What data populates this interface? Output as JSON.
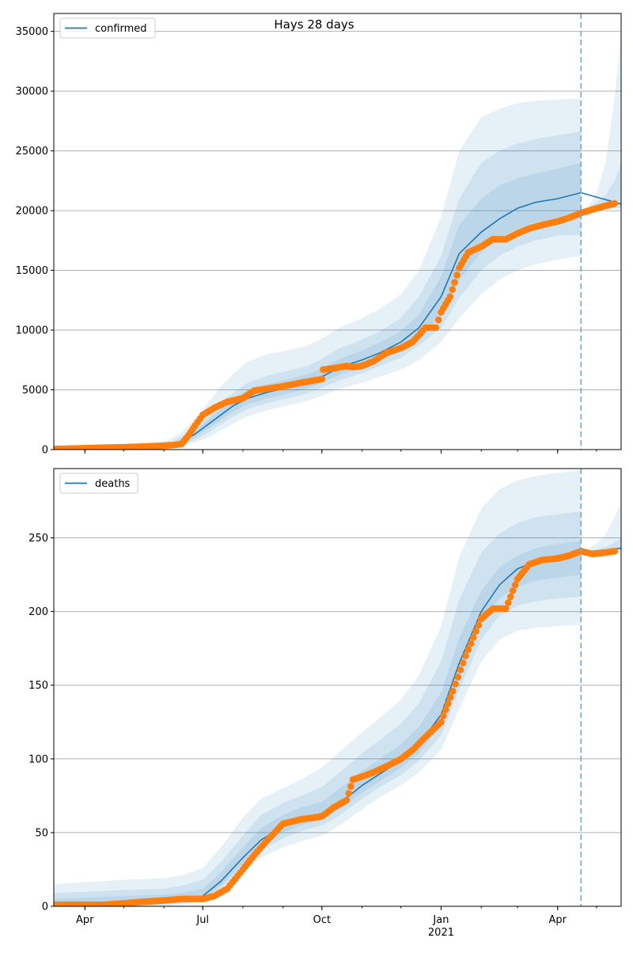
{
  "figure": {
    "title": "Hays 28 days"
  },
  "colors": {
    "model_line": "#1f77b4",
    "observed_points": "#ff7f0e",
    "band": "#1f77b4",
    "gridline": "#b0b0b0",
    "vline": "#7aa7cc"
  },
  "chart_data": [
    {
      "type": "line",
      "name": "confirmed-panel",
      "title": "Hays 28 days",
      "legend": "confirmed",
      "legend_position": "top-left",
      "grid": "horizontal",
      "x_type": "date",
      "xlim": [
        "2020-03-08",
        "2021-05-20"
      ],
      "ylim": [
        0,
        36500
      ],
      "yticks": [
        0,
        5000,
        10000,
        15000,
        20000,
        25000,
        30000,
        35000
      ],
      "xticks": [
        {
          "date": "2020-04-01",
          "label": "Apr"
        },
        {
          "date": "2020-07-01",
          "label": "Jul"
        },
        {
          "date": "2020-10-01",
          "label": "Oct"
        },
        {
          "date": "2021-01-01",
          "label": "Jan",
          "sublabel": "2021"
        },
        {
          "date": "2021-04-01",
          "label": "Apr"
        }
      ],
      "forecast_start": "2021-04-19",
      "model_line": {
        "x": [
          "2020-03-08",
          "2020-04-15",
          "2020-05-15",
          "2020-06-05",
          "2020-06-15",
          "2020-06-25",
          "2020-07-05",
          "2020-07-15",
          "2020-07-25",
          "2020-08-05",
          "2020-08-20",
          "2020-09-05",
          "2020-09-20",
          "2020-10-01",
          "2020-10-15",
          "2020-11-01",
          "2020-11-15",
          "2020-12-01",
          "2020-12-15",
          "2021-01-01",
          "2021-01-15",
          "2021-02-01",
          "2021-02-15",
          "2021-03-01",
          "2021-03-15",
          "2021-04-01",
          "2021-04-19",
          "2021-05-20"
        ],
        "y": [
          0,
          50,
          150,
          350,
          700,
          1300,
          2100,
          2900,
          3700,
          4300,
          4800,
          5200,
          5600,
          6100,
          6900,
          7500,
          8100,
          9000,
          10200,
          12800,
          16400,
          18200,
          19300,
          20200,
          20700,
          21000,
          21500,
          20550
        ]
      },
      "bands": [
        {
          "x": [
            "2020-03-08",
            "2020-05-15",
            "2020-06-05",
            "2020-06-15",
            "2020-06-25",
            "2020-07-05",
            "2020-07-15",
            "2020-07-25",
            "2020-08-05",
            "2020-08-20",
            "2020-09-05",
            "2020-09-20",
            "2020-10-01",
            "2020-10-15",
            "2020-11-01",
            "2020-11-15",
            "2020-12-01",
            "2020-12-15",
            "2021-01-01",
            "2021-01-15",
            "2021-02-01",
            "2021-02-15",
            "2021-03-01",
            "2021-03-15",
            "2021-04-01",
            "2021-04-19"
          ],
          "low": [
            0,
            50,
            150,
            300,
            600,
            1000,
            1600,
            2200,
            2800,
            3300,
            3700,
            4100,
            4500,
            5100,
            5600,
            6100,
            6700,
            7500,
            9000,
            11000,
            13000,
            14200,
            15000,
            15500,
            15900,
            16200
          ],
          "high": [
            0,
            350,
            800,
            1500,
            2600,
            3900,
            5300,
            6400,
            7400,
            8000,
            8300,
            8700,
            9300,
            10200,
            11000,
            11800,
            13000,
            15000,
            19500,
            25000,
            27800,
            28500,
            29000,
            29200,
            29300,
            29400
          ]
        },
        {
          "x": [
            "2020-03-08",
            "2020-05-15",
            "2020-06-05",
            "2020-06-15",
            "2020-06-25",
            "2020-07-05",
            "2020-07-15",
            "2020-07-25",
            "2020-08-05",
            "2020-08-20",
            "2020-09-05",
            "2020-09-20",
            "2020-10-01",
            "2020-10-15",
            "2020-11-01",
            "2020-11-15",
            "2020-12-01",
            "2020-12-15",
            "2021-01-01",
            "2021-01-15",
            "2021-02-01",
            "2021-02-15",
            "2021-03-01",
            "2021-03-15",
            "2021-04-01",
            "2021-04-19"
          ],
          "low": [
            0,
            80,
            200,
            420,
            800,
            1400,
            2100,
            2800,
            3400,
            3900,
            4300,
            4700,
            5200,
            5800,
            6400,
            7000,
            7700,
            8700,
            10200,
            12700,
            15000,
            16200,
            17000,
            17500,
            17900,
            18000
          ],
          "high": [
            0,
            250,
            550,
            1100,
            1900,
            2900,
            3900,
            4800,
            5600,
            6200,
            6600,
            7000,
            7600,
            8500,
            9200,
            9900,
            11000,
            12800,
            16200,
            21000,
            24000,
            25000,
            25600,
            26000,
            26300,
            26600
          ]
        },
        {
          "x": [
            "2020-03-08",
            "2020-05-15",
            "2020-06-05",
            "2020-06-15",
            "2020-06-25",
            "2020-07-05",
            "2020-07-15",
            "2020-07-25",
            "2020-08-05",
            "2020-08-20",
            "2020-09-05",
            "2020-09-20",
            "2020-10-01",
            "2020-10-15",
            "2020-11-01",
            "2020-11-15",
            "2020-12-01",
            "2020-12-15",
            "2021-01-01",
            "2021-01-15",
            "2021-02-01",
            "2021-02-15",
            "2021-03-01",
            "2021-03-15",
            "2021-04-01",
            "2021-04-19"
          ],
          "low": [
            0,
            110,
            270,
            550,
            1050,
            1750,
            2500,
            3200,
            3800,
            4300,
            4700,
            5100,
            5600,
            6300,
            6900,
            7500,
            8300,
            9300,
            11200,
            14200,
            16500,
            17700,
            18500,
            19000,
            19400,
            19600
          ],
          "high": [
            0,
            190,
            420,
            850,
            1550,
            2500,
            3400,
            4300,
            5000,
            5500,
            5900,
            6300,
            6800,
            7600,
            8300,
            9000,
            9900,
            11300,
            14500,
            18800,
            21000,
            22100,
            22700,
            23100,
            23500,
            24000
          ]
        },
        {
          "x": [
            "2021-04-19",
            "2021-04-25",
            "2021-05-01",
            "2021-05-08",
            "2021-05-15",
            "2021-05-20"
          ],
          "low": [
            19900,
            20000,
            20050,
            20100,
            20150,
            20200
          ],
          "high": [
            20100,
            20400,
            21500,
            24000,
            29500,
            35000
          ]
        },
        {
          "x": [
            "2021-04-19",
            "2021-04-25",
            "2021-05-01",
            "2021-05-08",
            "2021-05-15",
            "2021-05-20"
          ],
          "low": [
            19950,
            20050,
            20100,
            20150,
            20200,
            20250
          ],
          "high": [
            20050,
            20250,
            20700,
            21300,
            22500,
            24000
          ]
        }
      ],
      "observed": {
        "x": [
          "2020-03-08",
          "2020-03-20",
          "2020-04-01",
          "2020-04-15",
          "2020-05-01",
          "2020-05-15",
          "2020-06-01",
          "2020-06-10",
          "2020-06-15",
          "2020-06-20",
          "2020-06-25",
          "2020-07-01",
          "2020-07-10",
          "2020-07-20",
          "2020-08-01",
          "2020-08-10",
          "2020-08-20",
          "2020-09-01",
          "2020-09-15",
          "2020-10-01",
          "2020-10-02",
          "2020-10-10",
          "2020-10-20",
          "2020-10-25",
          "2020-11-01",
          "2020-11-10",
          "2020-11-20",
          "2020-12-01",
          "2020-12-10",
          "2020-12-20",
          "2020-12-28",
          "2021-01-01",
          "2021-01-08",
          "2021-01-15",
          "2021-01-22",
          "2021-02-01",
          "2021-02-10",
          "2021-02-20",
          "2021-03-01",
          "2021-03-10",
          "2021-03-20",
          "2021-04-01",
          "2021-04-10",
          "2021-04-19",
          "2021-04-28",
          "2021-05-08",
          "2021-05-15"
        ],
        "y": [
          50,
          80,
          120,
          160,
          200,
          250,
          330,
          400,
          500,
          1200,
          2000,
          2900,
          3500,
          4000,
          4300,
          4950,
          5100,
          5300,
          5600,
          5900,
          6700,
          6800,
          7000,
          6900,
          7000,
          7400,
          8100,
          8500,
          9000,
          10200,
          10200,
          11500,
          12800,
          15200,
          16500,
          17000,
          17600,
          17600,
          18100,
          18500,
          18800,
          19100,
          19400,
          19800,
          20100,
          20400,
          20600
        ]
      }
    },
    {
      "type": "line",
      "name": "deaths-panel",
      "legend": "deaths",
      "legend_position": "top-left",
      "grid": "horizontal",
      "x_type": "date",
      "xlim": [
        "2020-03-08",
        "2021-05-20"
      ],
      "ylim": [
        0,
        297
      ],
      "yticks": [
        0,
        50,
        100,
        150,
        200,
        250
      ],
      "xticks": [
        {
          "date": "2020-04-01",
          "label": "Apr"
        },
        {
          "date": "2020-07-01",
          "label": "Jul"
        },
        {
          "date": "2020-10-01",
          "label": "Oct"
        },
        {
          "date": "2021-01-01",
          "label": "Jan",
          "sublabel": "2021"
        },
        {
          "date": "2021-04-01",
          "label": "Apr"
        }
      ],
      "forecast_start": "2021-04-19",
      "model_line": {
        "x": [
          "2020-03-08",
          "2020-05-01",
          "2020-06-01",
          "2020-06-15",
          "2020-07-01",
          "2020-07-15",
          "2020-08-01",
          "2020-08-15",
          "2020-09-01",
          "2020-09-15",
          "2020-10-01",
          "2020-10-15",
          "2020-11-01",
          "2020-11-15",
          "2020-12-01",
          "2020-12-15",
          "2021-01-01",
          "2021-01-15",
          "2021-02-01",
          "2021-02-15",
          "2021-03-01",
          "2021-03-15",
          "2021-04-01",
          "2021-04-19",
          "2021-05-20"
        ],
        "y": [
          1,
          2,
          3,
          4,
          7,
          17,
          33,
          45,
          54,
          59,
          63,
          70,
          82,
          90,
          99,
          110,
          130,
          165,
          200,
          218,
          229,
          234,
          238,
          240,
          243
        ]
      },
      "bands": [
        {
          "x": [
            "2020-03-08",
            "2020-05-01",
            "2020-06-01",
            "2020-06-15",
            "2020-07-01",
            "2020-07-15",
            "2020-08-01",
            "2020-08-15",
            "2020-09-01",
            "2020-09-15",
            "2020-10-01",
            "2020-10-15",
            "2020-11-01",
            "2020-11-15",
            "2020-12-01",
            "2020-12-15",
            "2021-01-01",
            "2021-01-15",
            "2021-02-01",
            "2021-02-15",
            "2021-03-01",
            "2021-03-15",
            "2021-04-01",
            "2021-04-19"
          ],
          "low": [
            0,
            0,
            0,
            1,
            3,
            9,
            22,
            33,
            40,
            44,
            48,
            55,
            66,
            74,
            82,
            91,
            106,
            134,
            166,
            181,
            187,
            189,
            190,
            191
          ],
          "high": [
            15,
            18,
            19,
            21,
            26,
            40,
            60,
            73,
            80,
            86,
            94,
            105,
            118,
            128,
            140,
            157,
            190,
            237,
            270,
            283,
            289,
            292,
            294,
            296
          ]
        },
        {
          "x": [
            "2020-03-08",
            "2020-05-01",
            "2020-06-01",
            "2020-06-15",
            "2020-07-01",
            "2020-07-15",
            "2020-08-01",
            "2020-08-15",
            "2020-09-01",
            "2020-09-15",
            "2020-10-01",
            "2020-10-15",
            "2020-11-01",
            "2020-11-15",
            "2020-12-01",
            "2020-12-15",
            "2021-01-01",
            "2021-01-15",
            "2021-02-01",
            "2021-02-15",
            "2021-03-01",
            "2021-03-15",
            "2021-04-01",
            "2021-04-19"
          ],
          "low": [
            0,
            1,
            1,
            2,
            4,
            12,
            26,
            38,
            46,
            51,
            55,
            62,
            73,
            81,
            89,
            99,
            116,
            147,
            181,
            197,
            204,
            207,
            209,
            210
          ],
          "high": [
            9,
            11,
            12,
            14,
            18,
            30,
            48,
            62,
            70,
            75,
            81,
            91,
            104,
            113,
            124,
            138,
            166,
            208,
            240,
            253,
            260,
            264,
            266,
            268
          ]
        },
        {
          "x": [
            "2020-03-08",
            "2020-05-01",
            "2020-06-01",
            "2020-06-15",
            "2020-07-01",
            "2020-07-15",
            "2020-08-01",
            "2020-08-15",
            "2020-09-01",
            "2020-09-15",
            "2020-10-01",
            "2020-10-15",
            "2020-11-01",
            "2020-11-15",
            "2020-12-01",
            "2020-12-15",
            "2021-01-01",
            "2021-01-15",
            "2021-02-01",
            "2021-02-15",
            "2021-03-01",
            "2021-03-15",
            "2021-04-01",
            "2021-04-19"
          ],
          "low": [
            0,
            1,
            2,
            3,
            5,
            14,
            29,
            41,
            50,
            55,
            59,
            66,
            77,
            85,
            94,
            104,
            123,
            156,
            192,
            209,
            217,
            221,
            223,
            225
          ],
          "high": [
            5,
            7,
            8,
            9,
            12,
            23,
            40,
            53,
            62,
            67,
            71,
            80,
            92,
            100,
            110,
            122,
            145,
            182,
            214,
            230,
            238,
            243,
            246,
            248
          ]
        },
        {
          "x": [
            "2021-04-19",
            "2021-04-25",
            "2021-05-01",
            "2021-05-08",
            "2021-05-15",
            "2021-05-20"
          ],
          "low": [
            239,
            239,
            239,
            239,
            240,
            241
          ],
          "high": [
            241,
            243,
            246,
            252,
            264,
            274
          ]
        },
        {
          "x": [
            "2021-04-19",
            "2021-04-25",
            "2021-05-01",
            "2021-05-08",
            "2021-05-15",
            "2021-05-20"
          ],
          "low": [
            239.5,
            239.5,
            240,
            240,
            241,
            242
          ],
          "high": [
            240.5,
            241,
            242,
            244,
            247,
            250
          ]
        }
      ],
      "observed": {
        "x": [
          "2020-03-08",
          "2020-04-01",
          "2020-04-15",
          "2020-05-01",
          "2020-05-15",
          "2020-06-01",
          "2020-06-15",
          "2020-07-01",
          "2020-07-10",
          "2020-07-20",
          "2020-08-01",
          "2020-08-10",
          "2020-08-20",
          "2020-09-01",
          "2020-09-15",
          "2020-10-01",
          "2020-10-10",
          "2020-10-20",
          "2020-10-25",
          "2020-11-01",
          "2020-11-10",
          "2020-11-20",
          "2020-12-01",
          "2020-12-10",
          "2020-12-20",
          "2021-01-01",
          "2021-01-10",
          "2021-01-20",
          "2021-02-01",
          "2021-02-10",
          "2021-02-20",
          "2021-03-01",
          "2021-03-10",
          "2021-03-20",
          "2021-04-01",
          "2021-04-10",
          "2021-04-19",
          "2021-04-28",
          "2021-05-08",
          "2021-05-15"
        ],
        "y": [
          1,
          1,
          1,
          2,
          3,
          4,
          5,
          5,
          7,
          12,
          25,
          35,
          45,
          56,
          59,
          61,
          67,
          72,
          86,
          88,
          91,
          95,
          100,
          106,
          115,
          125,
          146,
          170,
          195,
          202,
          202,
          222,
          232,
          235,
          236,
          238,
          241,
          239,
          240,
          241
        ]
      }
    }
  ]
}
